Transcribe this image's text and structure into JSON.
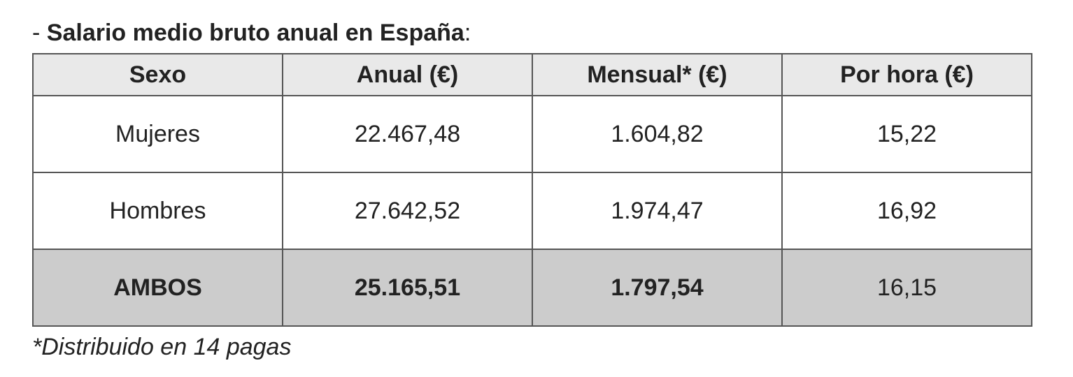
{
  "heading": {
    "prefix": "- ",
    "title": "Salario medio bruto anual en España",
    "suffix": ":"
  },
  "table": {
    "headers": [
      "Sexo",
      "Anual (€)",
      "Mensual* (€)",
      "Por hora (€)"
    ],
    "rows": [
      [
        "Mujeres",
        "22.467,48",
        "1.604,82",
        "15,22"
      ],
      [
        "Hombres",
        "27.642,52",
        "1.974,47",
        "16,92"
      ],
      [
        "AMBOS",
        "25.165,51",
        "1.797,54",
        "16,15"
      ]
    ]
  },
  "footnote": "*Distribuido en 14 pagas"
}
